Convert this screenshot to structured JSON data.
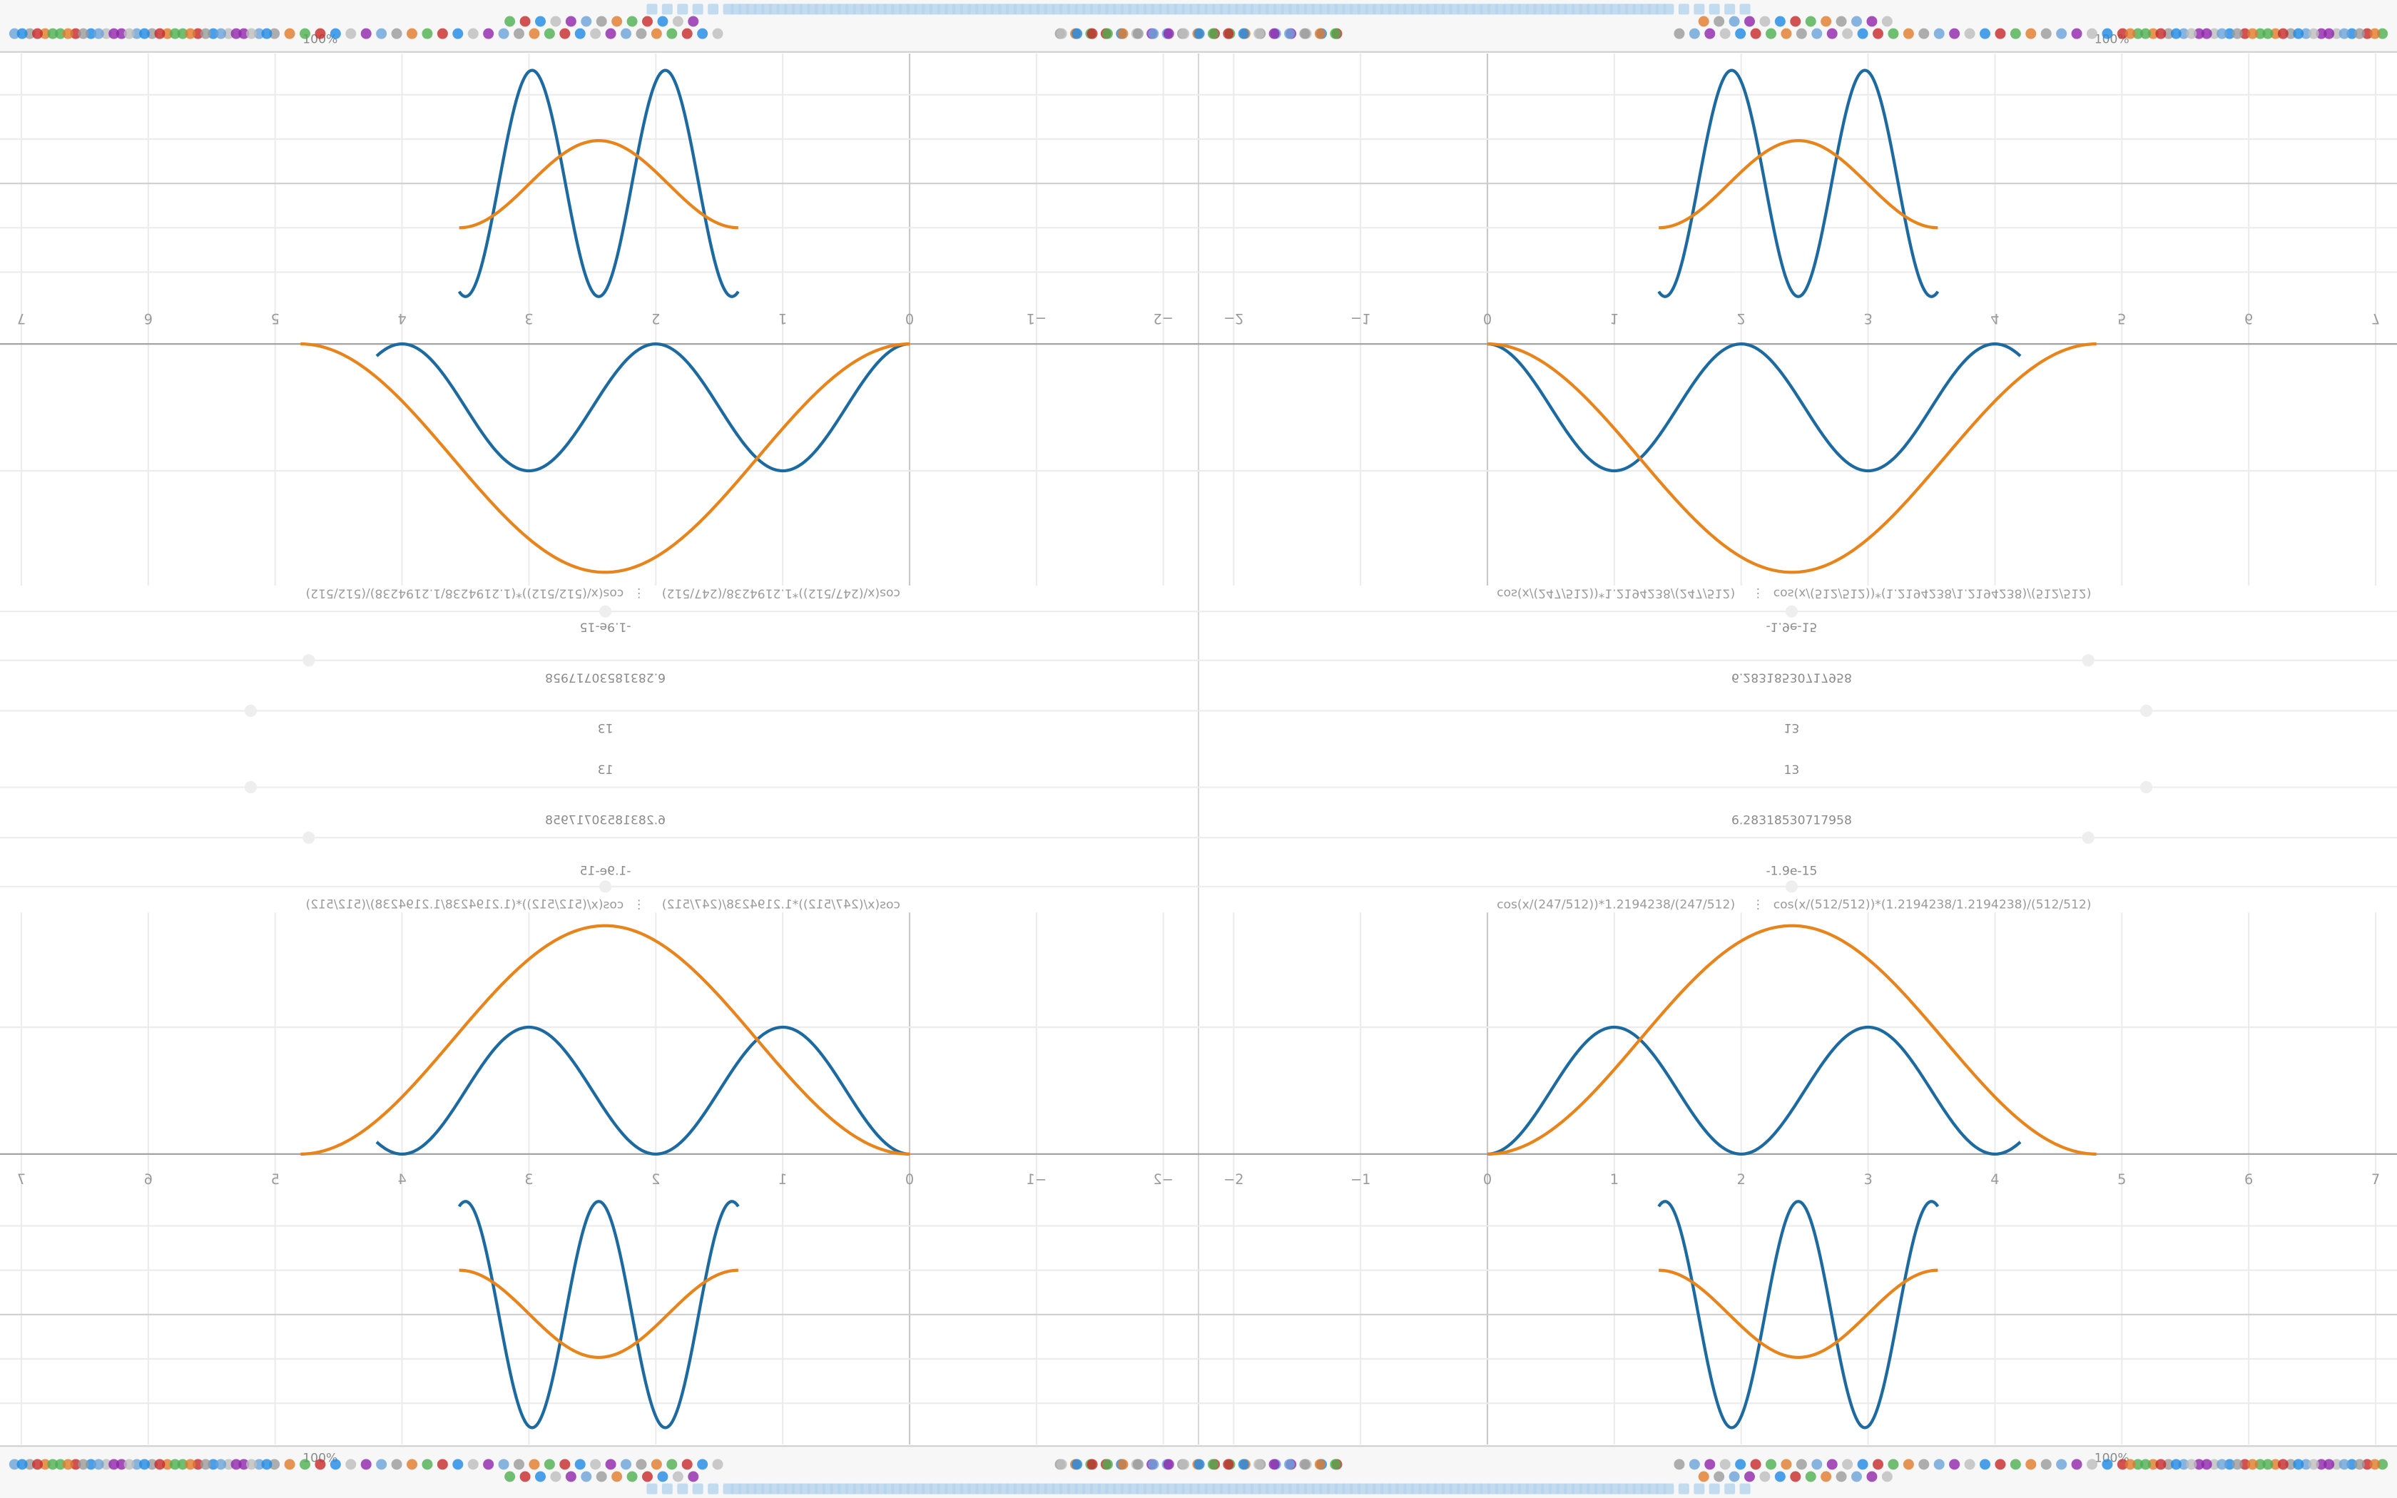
{
  "toolbar": {
    "zoom": "100%"
  },
  "algebra": {
    "value_count": "13",
    "value_tau": "6.28318530717958",
    "value_small": "-1.9e-15",
    "formula_a": "cos(x/(247/512))*1.2194238/(247/512)",
    "separator": "⋮",
    "formula_b": "cos(x/(512/512))*(1.2194238/1.2194238)/(512/512)"
  },
  "graph": {
    "x_axis_labels": [
      "−2",
      "−1",
      "0",
      "1",
      "2",
      "3",
      "4",
      "5",
      "6",
      "7"
    ]
  }
}
